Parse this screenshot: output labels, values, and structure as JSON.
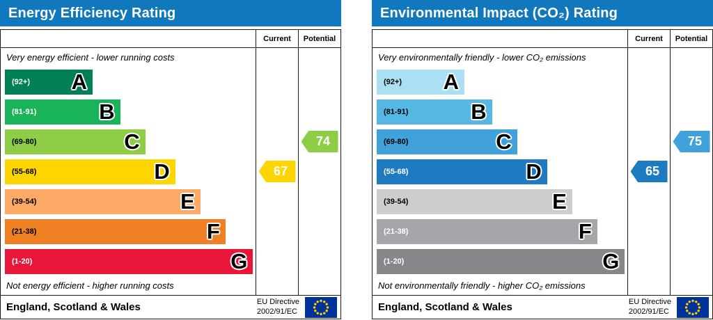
{
  "colors": {
    "header_bg": "#1278be",
    "border": "#1a1a1a",
    "flag_bg": "#003399",
    "flag_stars": "#ffcc00",
    "tag_text": "#ffffff"
  },
  "chart_data": [
    {
      "type": "bar",
      "title": "Energy Efficiency Rating",
      "column_headers": {
        "current": "Current",
        "potential": "Potential"
      },
      "top_caption": "Very energy efficient - lower running costs",
      "bottom_caption": "Not energy efficient - higher running costs",
      "bands": [
        {
          "letter": "A",
          "range": "(92+)",
          "color": "#008054",
          "label_color": "#ffffff",
          "width_pct": 35
        },
        {
          "letter": "B",
          "range": "(81-91)",
          "color": "#19b459",
          "label_color": "#ffffff",
          "width_pct": 46
        },
        {
          "letter": "C",
          "range": "(69-80)",
          "color": "#8dce46",
          "label_color": "#000000",
          "width_pct": 56
        },
        {
          "letter": "D",
          "range": "(55-68)",
          "color": "#ffd500",
          "label_color": "#000000",
          "width_pct": 68
        },
        {
          "letter": "E",
          "range": "(39-54)",
          "color": "#fcaa65",
          "label_color": "#000000",
          "width_pct": 78
        },
        {
          "letter": "F",
          "range": "(21-38)",
          "color": "#ef8023",
          "label_color": "#000000",
          "width_pct": 88
        },
        {
          "letter": "G",
          "range": "(1-20)",
          "color": "#e9153b",
          "label_color": "#ffffff",
          "width_pct": 99
        }
      ],
      "current": {
        "value": 67,
        "band": "D",
        "color": "#ffd500"
      },
      "potential": {
        "value": 74,
        "band": "C",
        "color": "#8dce46"
      },
      "footer": {
        "region": "England, Scotland & Wales",
        "directive_line1": "EU Directive",
        "directive_line2": "2002/91/EC"
      }
    },
    {
      "type": "bar",
      "title": "Environmental Impact (CO₂) Rating",
      "column_headers": {
        "current": "Current",
        "potential": "Potential"
      },
      "top_caption": "Very environmentally friendly - lower CO₂ emissions",
      "bottom_caption": "Not environmentally friendly - higher CO₂ emissions",
      "bands": [
        {
          "letter": "A",
          "range": "(92+)",
          "color": "#abe0f2",
          "label_color": "#000000",
          "width_pct": 35
        },
        {
          "letter": "B",
          "range": "(81-91)",
          "color": "#55b7e3",
          "label_color": "#000000",
          "width_pct": 46
        },
        {
          "letter": "C",
          "range": "(69-80)",
          "color": "#41a1db",
          "label_color": "#000000",
          "width_pct": 56
        },
        {
          "letter": "D",
          "range": "(55-68)",
          "color": "#1e7bc1",
          "label_color": "#ffffff",
          "width_pct": 68
        },
        {
          "letter": "E",
          "range": "(39-54)",
          "color": "#cbcdce",
          "label_color": "#000000",
          "width_pct": 78
        },
        {
          "letter": "F",
          "range": "(21-38)",
          "color": "#a5a6a9",
          "label_color": "#ffffff",
          "width_pct": 88
        },
        {
          "letter": "G",
          "range": "(1-20)",
          "color": "#86878b",
          "label_color": "#ffffff",
          "width_pct": 99
        }
      ],
      "current": {
        "value": 65,
        "band": "D",
        "color": "#1e7bc1"
      },
      "potential": {
        "value": 75,
        "band": "C",
        "color": "#41a1db"
      },
      "footer": {
        "region": "England, Scotland & Wales",
        "directive_line1": "EU Directive",
        "directive_line2": "2002/91/EC"
      }
    }
  ]
}
